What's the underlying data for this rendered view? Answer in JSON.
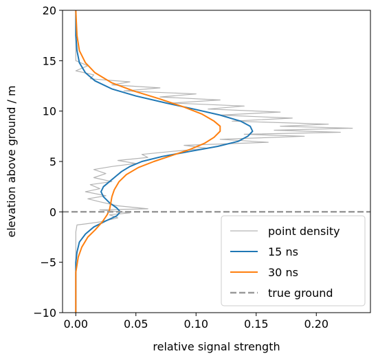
{
  "chart_data": {
    "type": "line",
    "xlabel": "relative signal strength",
    "ylabel": "elevation above ground / m",
    "xlim": [
      -0.011,
      0.245
    ],
    "ylim": [
      -10,
      20
    ],
    "x_ticks": [
      0.0,
      0.05,
      0.1,
      0.15,
      0.2
    ],
    "x_tick_labels": [
      "0.00",
      "0.05",
      "0.10",
      "0.15",
      "0.20"
    ],
    "y_ticks": [
      -10,
      -5,
      0,
      5,
      10,
      15,
      20
    ],
    "y_tick_labels": [
      "−10",
      "−5",
      "0",
      "5",
      "10",
      "15",
      "20"
    ],
    "grid": false,
    "legend_position": "lower right",
    "series": [
      {
        "name": "point density",
        "color": "#b3b3b3",
        "style": "solid",
        "points": [
          [
            0.0,
            -10
          ],
          [
            0.0,
            -2
          ],
          [
            0.001,
            -1.3
          ],
          [
            0.008,
            -1.2
          ],
          [
            0.02,
            -1.0
          ],
          [
            0.035,
            -0.6
          ],
          [
            0.028,
            -0.3
          ],
          [
            0.045,
            -0.1
          ],
          [
            0.02,
            0.2
          ],
          [
            0.06,
            0.3
          ],
          [
            0.035,
            0.6
          ],
          [
            0.02,
            1.0
          ],
          [
            0.01,
            1.3
          ],
          [
            0.025,
            1.6
          ],
          [
            0.008,
            2.0
          ],
          [
            0.02,
            2.3
          ],
          [
            0.012,
            2.7
          ],
          [
            0.03,
            3.0
          ],
          [
            0.015,
            3.4
          ],
          [
            0.025,
            3.8
          ],
          [
            0.015,
            4.2
          ],
          [
            0.03,
            4.5
          ],
          [
            0.05,
            4.8
          ],
          [
            0.035,
            5.1
          ],
          [
            0.06,
            5.4
          ],
          [
            0.055,
            5.7
          ],
          [
            0.08,
            6.0
          ],
          [
            0.11,
            6.3
          ],
          [
            0.09,
            6.6
          ],
          [
            0.16,
            6.9
          ],
          [
            0.12,
            7.2
          ],
          [
            0.19,
            7.5
          ],
          [
            0.14,
            7.7
          ],
          [
            0.22,
            7.9
          ],
          [
            0.165,
            8.1
          ],
          [
            0.23,
            8.3
          ],
          [
            0.17,
            8.5
          ],
          [
            0.21,
            8.7
          ],
          [
            0.13,
            9.0
          ],
          [
            0.18,
            9.3
          ],
          [
            0.12,
            9.6
          ],
          [
            0.17,
            9.9
          ],
          [
            0.11,
            10.2
          ],
          [
            0.14,
            10.5
          ],
          [
            0.08,
            10.8
          ],
          [
            0.12,
            11.1
          ],
          [
            0.07,
            11.4
          ],
          [
            0.1,
            11.7
          ],
          [
            0.04,
            12.0
          ],
          [
            0.07,
            12.3
          ],
          [
            0.03,
            12.6
          ],
          [
            0.045,
            12.9
          ],
          [
            0.012,
            13.2
          ],
          [
            0.015,
            13.6
          ],
          [
            0.0,
            14.0
          ],
          [
            0.01,
            14.5
          ],
          [
            0.0,
            15.0
          ],
          [
            0.0,
            20.0
          ]
        ]
      },
      {
        "name": "15 ns",
        "color": "#1f77b4",
        "style": "solid",
        "points": [
          [
            0.0,
            -10
          ],
          [
            0.0,
            -5
          ],
          [
            0.001,
            -4
          ],
          [
            0.003,
            -3
          ],
          [
            0.008,
            -2.2
          ],
          [
            0.015,
            -1.5
          ],
          [
            0.025,
            -0.9
          ],
          [
            0.034,
            -0.4
          ],
          [
            0.037,
            0.0
          ],
          [
            0.034,
            0.4
          ],
          [
            0.028,
            0.9
          ],
          [
            0.023,
            1.5
          ],
          [
            0.021,
            2.0
          ],
          [
            0.023,
            2.5
          ],
          [
            0.028,
            3.0
          ],
          [
            0.033,
            3.5
          ],
          [
            0.038,
            4.0
          ],
          [
            0.045,
            4.5
          ],
          [
            0.055,
            5.0
          ],
          [
            0.072,
            5.5
          ],
          [
            0.095,
            6.0
          ],
          [
            0.118,
            6.5
          ],
          [
            0.135,
            7.0
          ],
          [
            0.143,
            7.5
          ],
          [
            0.147,
            8.0
          ],
          [
            0.145,
            8.5
          ],
          [
            0.137,
            9.0
          ],
          [
            0.12,
            9.6
          ],
          [
            0.098,
            10.2
          ],
          [
            0.075,
            10.8
          ],
          [
            0.05,
            11.5
          ],
          [
            0.03,
            12.2
          ],
          [
            0.016,
            13.0
          ],
          [
            0.008,
            13.8
          ],
          [
            0.003,
            14.8
          ],
          [
            0.001,
            16.0
          ],
          [
            0.0,
            17.5
          ],
          [
            0.0,
            20.0
          ]
        ]
      },
      {
        "name": "30 ns",
        "color": "#ff7f0e",
        "style": "solid",
        "points": [
          [
            0.0,
            -10
          ],
          [
            0.0,
            -6
          ],
          [
            0.002,
            -4.5
          ],
          [
            0.005,
            -3.5
          ],
          [
            0.01,
            -2.5
          ],
          [
            0.016,
            -1.8
          ],
          [
            0.022,
            -1.0
          ],
          [
            0.026,
            -0.3
          ],
          [
            0.028,
            0.2
          ],
          [
            0.029,
            0.8
          ],
          [
            0.03,
            1.5
          ],
          [
            0.032,
            2.2
          ],
          [
            0.036,
            3.0
          ],
          [
            0.042,
            3.7
          ],
          [
            0.052,
            4.4
          ],
          [
            0.065,
            5.0
          ],
          [
            0.08,
            5.6
          ],
          [
            0.095,
            6.2
          ],
          [
            0.107,
            6.8
          ],
          [
            0.115,
            7.4
          ],
          [
            0.12,
            8.0
          ],
          [
            0.12,
            8.5
          ],
          [
            0.115,
            9.0
          ],
          [
            0.105,
            9.7
          ],
          [
            0.09,
            10.4
          ],
          [
            0.07,
            11.2
          ],
          [
            0.048,
            12.0
          ],
          [
            0.03,
            12.8
          ],
          [
            0.016,
            13.8
          ],
          [
            0.008,
            14.8
          ],
          [
            0.003,
            16.0
          ],
          [
            0.001,
            17.5
          ],
          [
            0.0,
            20.0
          ]
        ]
      },
      {
        "name": "true ground",
        "color": "#999999",
        "style": "dashed",
        "points": [
          [
            -0.011,
            0
          ],
          [
            0.245,
            0
          ]
        ]
      }
    ],
    "legend": [
      "point density",
      "15 ns",
      "30 ns",
      "true ground"
    ]
  }
}
